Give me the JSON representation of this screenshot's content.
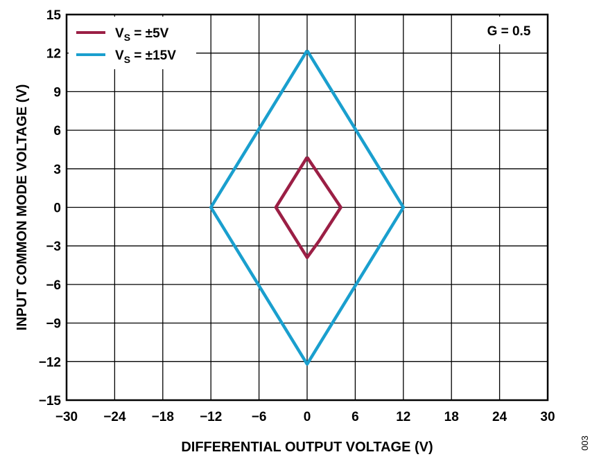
{
  "chart_data": {
    "type": "line",
    "xlabel": "DIFFERENTIAL OUTPUT VOLTAGE (V)",
    "ylabel": "INPUT COMMON MODE VOLTAGE (V)",
    "xlim": [
      -30,
      30
    ],
    "ylim": [
      -15,
      15
    ],
    "x_ticks": [
      -30,
      -24,
      -18,
      -12,
      -6,
      0,
      6,
      12,
      18,
      24,
      30
    ],
    "x_tick_labels": [
      "−30",
      "−24",
      "−18",
      "−12",
      "−6",
      "0",
      "6",
      "12",
      "18",
      "24",
      "30"
    ],
    "y_ticks": [
      15,
      12,
      9,
      6,
      3,
      0,
      -3,
      -6,
      -9,
      -12,
      -15
    ],
    "y_tick_labels": [
      "15",
      "12",
      "9",
      "6",
      "3",
      "0",
      "−3",
      "−6",
      "−9",
      "−12",
      "−15"
    ],
    "grid": true,
    "legend_position": "top-left",
    "annotation": "G = 0.5",
    "series": [
      {
        "legend_main": "V",
        "legend_sub": "S",
        "legend_rest": " = ±5V",
        "color": "#9b1f45",
        "points": [
          [
            0,
            3.9
          ],
          [
            4.2,
            0
          ],
          [
            1.5,
            -2.6
          ],
          [
            0,
            -3.9
          ],
          [
            -3.9,
            0
          ],
          [
            0,
            3.9
          ]
        ]
      },
      {
        "legend_main": "V",
        "legend_sub": "S",
        "legend_rest": " = ±15V",
        "color": "#1a9fce",
        "points": [
          [
            0,
            12.2
          ],
          [
            12,
            0
          ],
          [
            0,
            -12.2
          ],
          [
            -12,
            0
          ],
          [
            0,
            12.2
          ]
        ]
      }
    ]
  },
  "figure_id": "003"
}
